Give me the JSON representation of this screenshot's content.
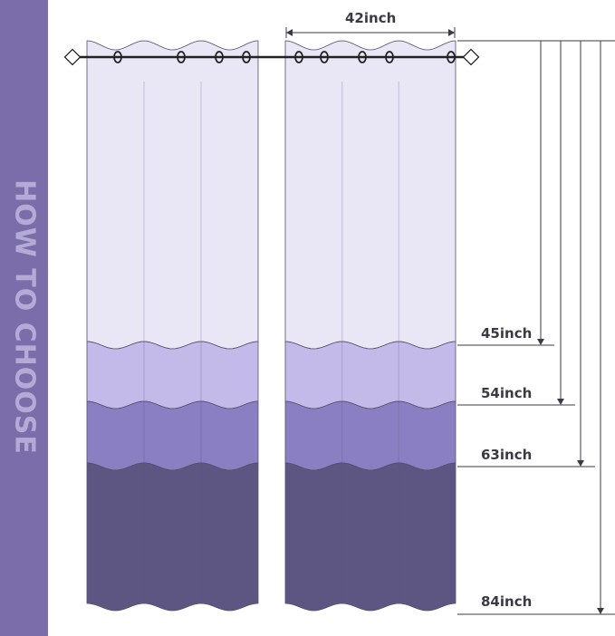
{
  "sidebar_title": "HOW TO CHOOSE",
  "width_label": "42inch",
  "lengths": [
    {
      "label": "45inch"
    },
    {
      "label": "54inch"
    },
    {
      "label": "63inch"
    },
    {
      "label": "84inch"
    }
  ],
  "colors": {
    "sidebar": "#7a6daa",
    "band_1": "#e9e6f6",
    "band_2": "#c3baea",
    "band_3": "#8b7fc4",
    "band_4": "#5e5682",
    "line": "#3a3a44"
  }
}
